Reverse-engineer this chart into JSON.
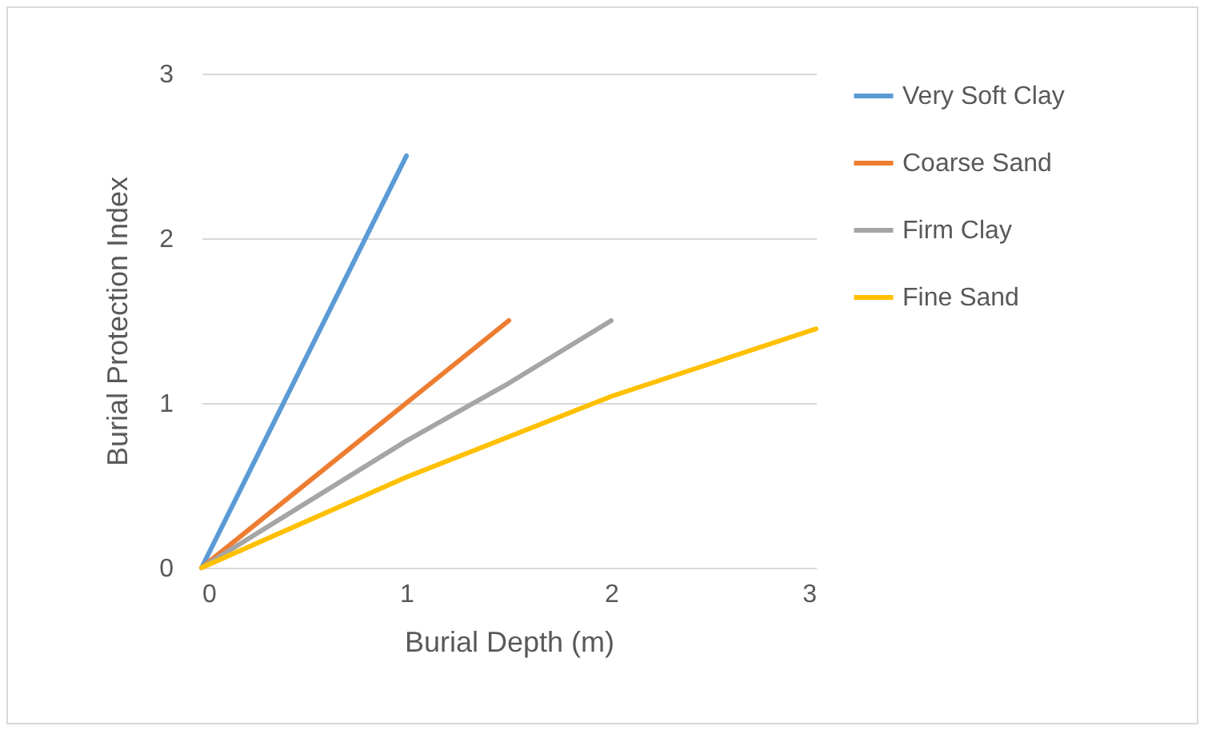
{
  "chart_data": {
    "type": "line",
    "xlabel": "Burial Depth (m)",
    "ylabel": "Burial Protection Index",
    "xlim": [
      0,
      3
    ],
    "ylim": [
      0,
      3
    ],
    "xticks": [
      0,
      1,
      2,
      3
    ],
    "yticks": [
      0,
      1,
      2,
      3
    ],
    "grid": "y",
    "legend": "right",
    "marker": "none",
    "line_style": "solid",
    "series": [
      {
        "name": "Very Soft Clay",
        "color": "#5b9bd5",
        "x": [
          0,
          0.4,
          1
        ],
        "values": [
          0,
          1,
          2.5
        ]
      },
      {
        "name": "Coarse Sand",
        "color": "#ed7d31",
        "x": [
          0,
          1,
          1.5
        ],
        "values": [
          0,
          1,
          1.5
        ]
      },
      {
        "name": "Firm Clay",
        "color": "#a5a5a5",
        "x": [
          0,
          1,
          1.5,
          2
        ],
        "values": [
          0,
          0.77,
          1.12,
          1.5
        ]
      },
      {
        "name": "Fine Sand",
        "color": "#ffc000",
        "x": [
          0,
          1,
          2,
          3
        ],
        "values": [
          0,
          0.55,
          1.04,
          1.45
        ]
      }
    ]
  }
}
